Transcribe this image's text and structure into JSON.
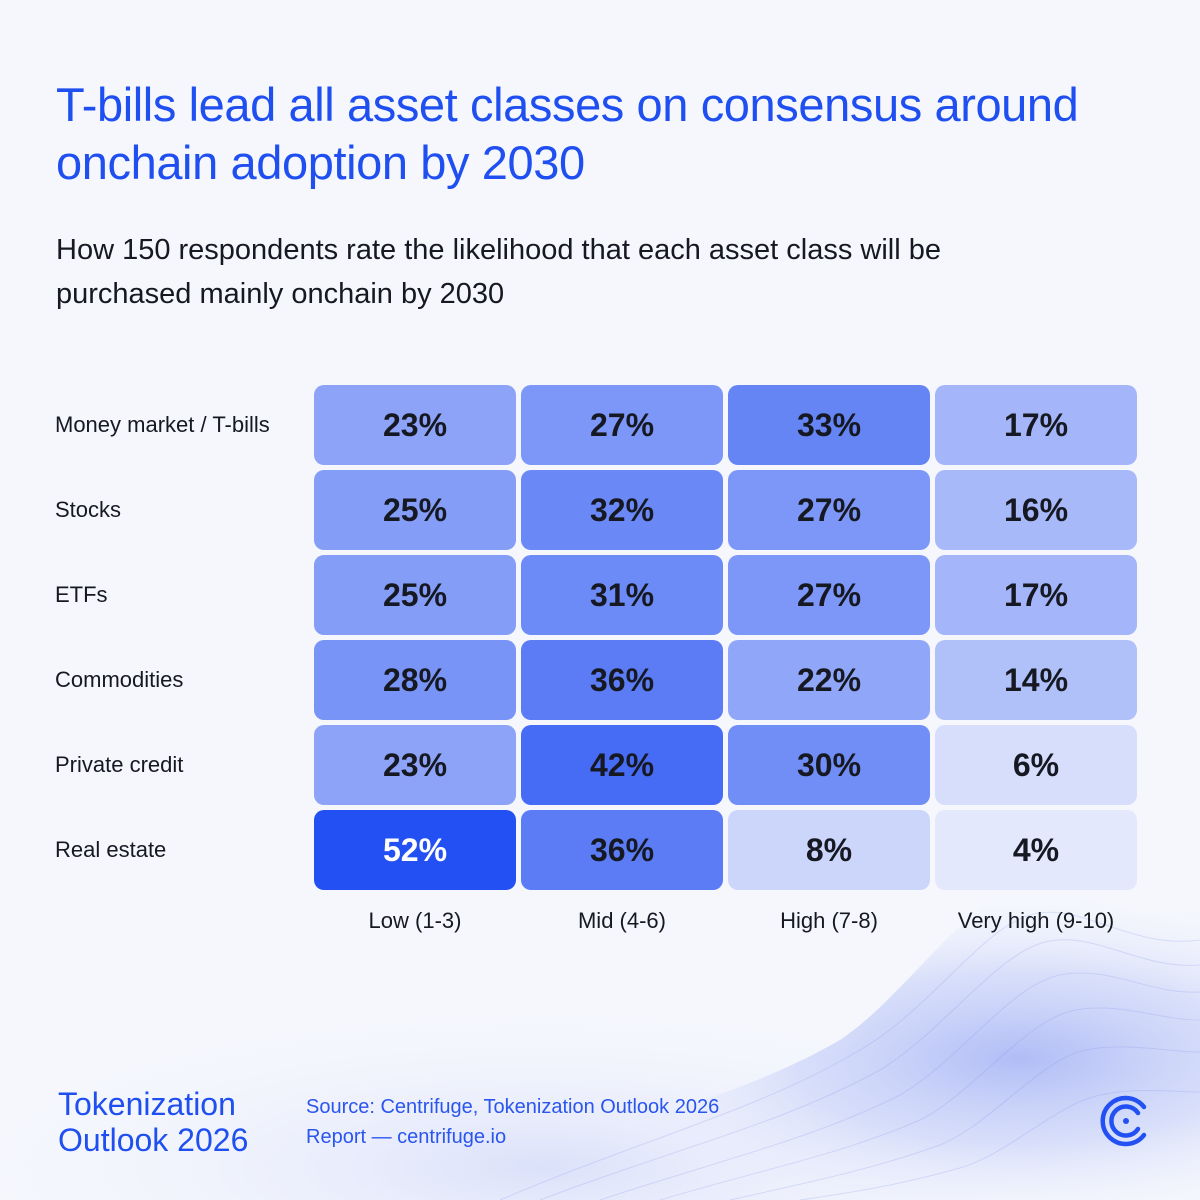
{
  "title": "T-bills lead all asset classes on consensus around onchain adoption by 2030",
  "subtitle": "How 150 respondents rate the likelihood that each asset class will be purchased mainly onchain by 2030",
  "chart_data": {
    "type": "heatmap",
    "title": "T-bills lead all asset classes on consensus around onchain adoption by 2030",
    "subtitle": "How 150 respondents rate the likelihood that each asset class will be purchased mainly onchain by 2030",
    "rows": [
      "Money market / T-bills",
      "Stocks",
      "ETFs",
      "Commodities",
      "Private credit",
      "Real estate"
    ],
    "columns": [
      "Low (1-3)",
      "Mid (4-6)",
      "High (7-8)",
      "Very high (9-10)"
    ],
    "values": [
      [
        23,
        27,
        33,
        17
      ],
      [
        25,
        32,
        27,
        16
      ],
      [
        25,
        31,
        27,
        17
      ],
      [
        28,
        36,
        22,
        14
      ],
      [
        23,
        42,
        30,
        6
      ],
      [
        52,
        36,
        8,
        4
      ]
    ],
    "unit": "%",
    "colors": {
      "low": "#e3e8fc",
      "high": "#2350f2",
      "text_dark": "#161822",
      "text_light": "#ffffff"
    }
  },
  "footer": {
    "brand_line1": "Tokenization",
    "brand_line2": "Outlook 2026",
    "source_line1": "Source: Centrifuge, Tokenization Outlook 2026",
    "source_line2": "Report — centrifuge.io",
    "logo_icon": "centrifuge-logo-icon"
  }
}
